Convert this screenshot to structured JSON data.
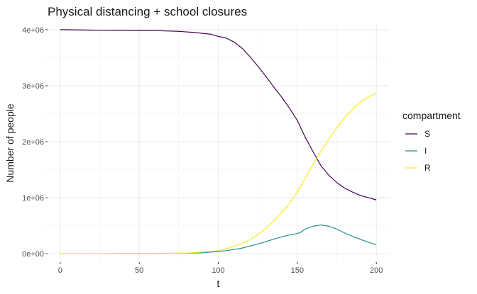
{
  "chart_data": {
    "type": "line",
    "title": "Physical distancing + school closures",
    "xlabel": "t",
    "ylabel": "Number of people",
    "xlim": [
      -8,
      208
    ],
    "ylim": [
      -150000,
      4100000
    ],
    "x_ticks": [
      0,
      50,
      100,
      150,
      200
    ],
    "x_tick_labels": [
      "0",
      "50",
      "100",
      "150",
      "200"
    ],
    "y_ticks": [
      0,
      1000000,
      2000000,
      3000000,
      4000000
    ],
    "y_tick_labels": [
      "0e+00",
      "1e+06",
      "2e+06",
      "3e+06",
      "4e+06"
    ],
    "grid": true,
    "legend": {
      "title": "compartment",
      "position": "right",
      "entries": [
        "S",
        "I",
        "R"
      ]
    },
    "series": [
      {
        "name": "S",
        "color": "#440154",
        "points": [
          [
            0,
            4000000
          ],
          [
            25,
            3990000
          ],
          [
            50,
            3985000
          ],
          [
            60,
            3984000
          ],
          [
            75,
            3970000
          ],
          [
            85,
            3950000
          ],
          [
            95,
            3920000
          ],
          [
            100,
            3880000
          ],
          [
            105,
            3850000
          ],
          [
            110,
            3780000
          ],
          [
            115,
            3670000
          ],
          [
            120,
            3520000
          ],
          [
            125,
            3350000
          ],
          [
            130,
            3170000
          ],
          [
            135,
            2980000
          ],
          [
            140,
            2800000
          ],
          [
            145,
            2600000
          ],
          [
            150,
            2380000
          ],
          [
            155,
            2080000
          ],
          [
            160,
            1820000
          ],
          [
            165,
            1570000
          ],
          [
            170,
            1400000
          ],
          [
            175,
            1270000
          ],
          [
            180,
            1170000
          ],
          [
            185,
            1100000
          ],
          [
            190,
            1040000
          ],
          [
            195,
            1000000
          ],
          [
            200,
            960000
          ]
        ]
      },
      {
        "name": "I",
        "color": "#21908C",
        "points": [
          [
            0,
            0
          ],
          [
            50,
            2000
          ],
          [
            80,
            10000
          ],
          [
            90,
            18000
          ],
          [
            100,
            40000
          ],
          [
            105,
            55000
          ],
          [
            110,
            75000
          ],
          [
            115,
            100000
          ],
          [
            120,
            135000
          ],
          [
            125,
            175000
          ],
          [
            130,
            215000
          ],
          [
            135,
            260000
          ],
          [
            140,
            300000
          ],
          [
            145,
            335000
          ],
          [
            150,
            360000
          ],
          [
            152,
            380000
          ],
          [
            155,
            440000
          ],
          [
            160,
            490000
          ],
          [
            165,
            515000
          ],
          [
            170,
            490000
          ],
          [
            175,
            440000
          ],
          [
            180,
            370000
          ],
          [
            185,
            310000
          ],
          [
            190,
            255000
          ],
          [
            195,
            205000
          ],
          [
            200,
            160000
          ]
        ]
      },
      {
        "name": "R",
        "color": "#FDE725",
        "points": [
          [
            0,
            0
          ],
          [
            50,
            3000
          ],
          [
            80,
            12000
          ],
          [
            90,
            30000
          ],
          [
            100,
            55000
          ],
          [
            105,
            90000
          ],
          [
            110,
            130000
          ],
          [
            115,
            180000
          ],
          [
            120,
            250000
          ],
          [
            125,
            340000
          ],
          [
            130,
            450000
          ],
          [
            135,
            580000
          ],
          [
            140,
            730000
          ],
          [
            145,
            900000
          ],
          [
            150,
            1100000
          ],
          [
            155,
            1350000
          ],
          [
            160,
            1600000
          ],
          [
            165,
            1830000
          ],
          [
            170,
            2050000
          ],
          [
            175,
            2250000
          ],
          [
            180,
            2430000
          ],
          [
            185,
            2580000
          ],
          [
            190,
            2710000
          ],
          [
            195,
            2800000
          ],
          [
            200,
            2860000
          ]
        ]
      }
    ]
  }
}
